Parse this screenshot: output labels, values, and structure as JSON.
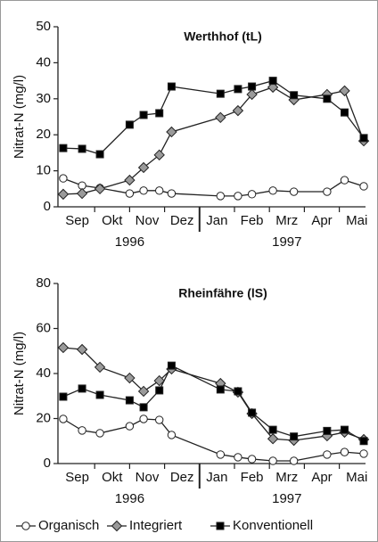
{
  "chart_data": [
    {
      "type": "line",
      "title": "Werthhof (tL)",
      "y_label": "Nitrat-N (mg/l)",
      "categories": [
        "Sep",
        "Okt",
        "Nov",
        "Dez",
        "Jan",
        "Feb",
        "Mrz",
        "Apr",
        "Mai"
      ],
      "year_labels": [
        "1996",
        "1997"
      ],
      "x": [
        0.1,
        0.64,
        1.15,
        2.0,
        2.4,
        2.85,
        3.2,
        4.6,
        5.1,
        5.5,
        6.1,
        6.7,
        7.65,
        8.15,
        8.7
      ],
      "xlim": [
        0,
        8.75
      ],
      "ylim": [
        0,
        50
      ],
      "yticks": [
        0,
        10,
        20,
        30,
        40,
        50
      ],
      "series": [
        {
          "name": "Organisch",
          "marker": "circle",
          "color": "#ffffff",
          "values": [
            7.9,
            5.9,
            5.2,
            3.7,
            4.5,
            4.5,
            3.7,
            3.0,
            3.0,
            3.5,
            4.5,
            4.2,
            4.2,
            7.4,
            5.7
          ]
        },
        {
          "name": "Integriert",
          "marker": "diamond",
          "color": "#9a9a9a",
          "values": [
            3.5,
            3.7,
            5.0,
            7.4,
            10.9,
            14.4,
            20.8,
            24.8,
            26.7,
            31.2,
            33.2,
            29.7,
            31.2,
            32.2,
            18.3
          ]
        },
        {
          "name": "Konventionell",
          "marker": "square",
          "color": "#000000",
          "values": [
            16.3,
            16.1,
            14.6,
            22.8,
            25.5,
            26.0,
            33.4,
            31.4,
            32.7,
            33.4,
            35.0,
            31.0,
            30.0,
            26.2,
            19.1
          ]
        }
      ]
    },
    {
      "type": "line",
      "title": "Rheinfähre (lS)",
      "y_label": "Nitrat-N (mg/l)",
      "categories": [
        "Sep",
        "Okt",
        "Nov",
        "Dez",
        "Jan",
        "Feb",
        "Mrz",
        "Apr",
        "Mai"
      ],
      "year_labels": [
        "1996",
        "1997"
      ],
      "x": [
        0.1,
        0.64,
        1.15,
        2.0,
        2.4,
        2.85,
        3.2,
        4.6,
        5.1,
        5.5,
        6.1,
        6.7,
        7.65,
        8.15,
        8.7
      ],
      "xlim": [
        0,
        8.75
      ],
      "ylim": [
        0,
        80
      ],
      "yticks": [
        0,
        20,
        40,
        60,
        80
      ],
      "series": [
        {
          "name": "Organisch",
          "marker": "circle",
          "color": "#ffffff",
          "values": [
            19.8,
            14.7,
            13.5,
            16.6,
            19.8,
            19.4,
            12.7,
            4.0,
            2.8,
            2.0,
            1.2,
            1.2,
            4.0,
            5.1,
            4.4
          ]
        },
        {
          "name": "Integriert",
          "marker": "diamond",
          "color": "#9a9a9a",
          "values": [
            51.5,
            50.7,
            42.8,
            38.0,
            32.1,
            36.8,
            42.0,
            35.6,
            31.7,
            22.2,
            11.0,
            10.3,
            12.3,
            13.9,
            10.7
          ]
        },
        {
          "name": "Konventionell",
          "marker": "square",
          "color": "#000000",
          "values": [
            29.7,
            33.3,
            30.5,
            28.1,
            25.0,
            32.5,
            43.5,
            32.9,
            32.1,
            22.6,
            15.0,
            12.0,
            14.5,
            15.0,
            10.0
          ]
        }
      ]
    }
  ]
}
